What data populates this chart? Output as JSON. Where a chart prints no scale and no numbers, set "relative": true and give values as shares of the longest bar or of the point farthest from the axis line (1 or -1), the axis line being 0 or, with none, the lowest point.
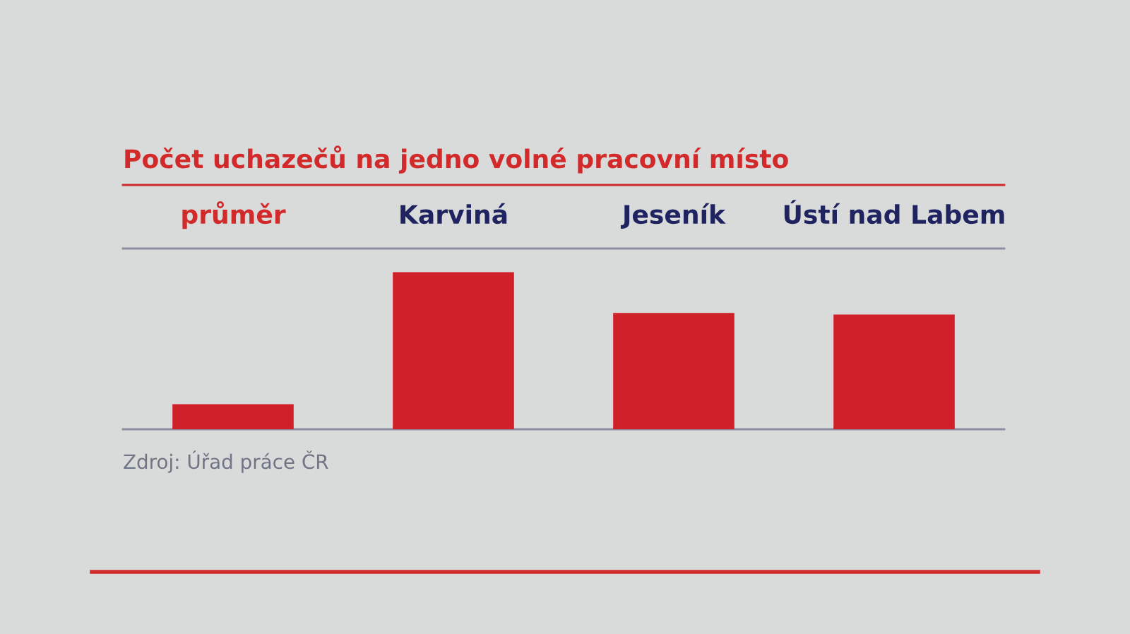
{
  "chart_data": {
    "type": "bar",
    "title": "Počet uchazečů na jedno volné pracovní místo",
    "categories": [
      "průměr",
      "Karviná",
      "Jeseník",
      "Ústí nad Labem"
    ],
    "values": [
      0.16,
      1,
      0.74,
      0.73
    ],
    "relative": true,
    "color": "#d0202a",
    "annotations": [
      "Zdroj: Úřad práce ČR"
    ]
  }
}
